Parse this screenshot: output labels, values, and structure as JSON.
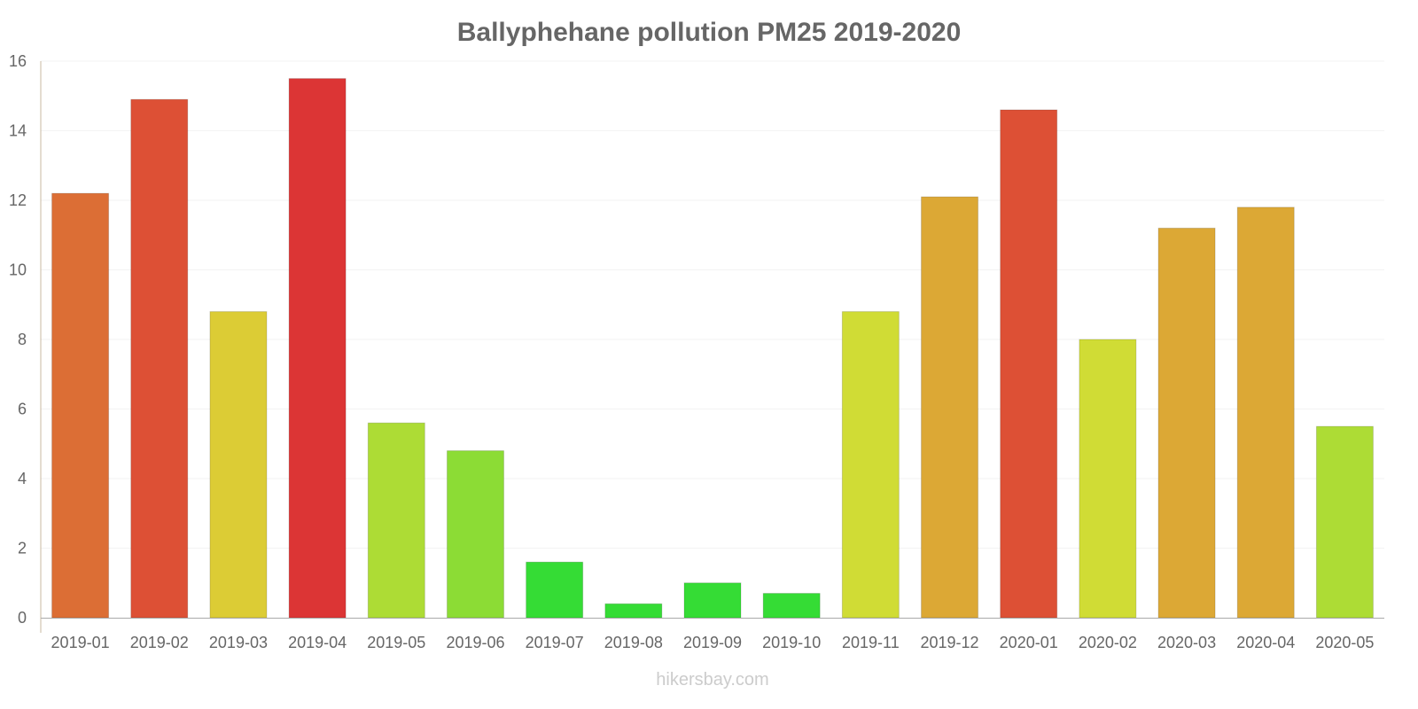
{
  "chart_data": {
    "type": "bar",
    "title": "Ballyphehane pollution PM25 2019-2020",
    "xlabel": "",
    "ylabel": "",
    "ylim": [
      0,
      16
    ],
    "yticks": [
      0,
      2,
      4,
      6,
      8,
      10,
      12,
      14,
      16
    ],
    "grid": true,
    "categories": [
      "2019-01",
      "2019-02",
      "2019-03",
      "2019-04",
      "2019-05",
      "2019-06",
      "2019-07",
      "2019-08",
      "2019-09",
      "2019-10",
      "2019-11",
      "2019-12",
      "2020-01",
      "2020-02",
      "2020-03",
      "2020-04",
      "2020-05"
    ],
    "values": [
      12.2,
      14.9,
      8.8,
      15.5,
      5.6,
      4.8,
      1.6,
      0.4,
      1.0,
      0.7,
      8.8,
      12.1,
      14.6,
      8.0,
      11.2,
      11.8,
      5.5
    ],
    "colors": [
      "#dc6e35",
      "#dd5035",
      "#dccc35",
      "#dc3535",
      "#addc35",
      "#8cdc35",
      "#35dc35",
      "#35dc35",
      "#35dc35",
      "#35dc35",
      "#d0dc35",
      "#dca835",
      "#dd5035",
      "#d0dc35",
      "#dca835",
      "#dca835",
      "#addc35"
    ]
  },
  "watermark": "hikersbay.com"
}
